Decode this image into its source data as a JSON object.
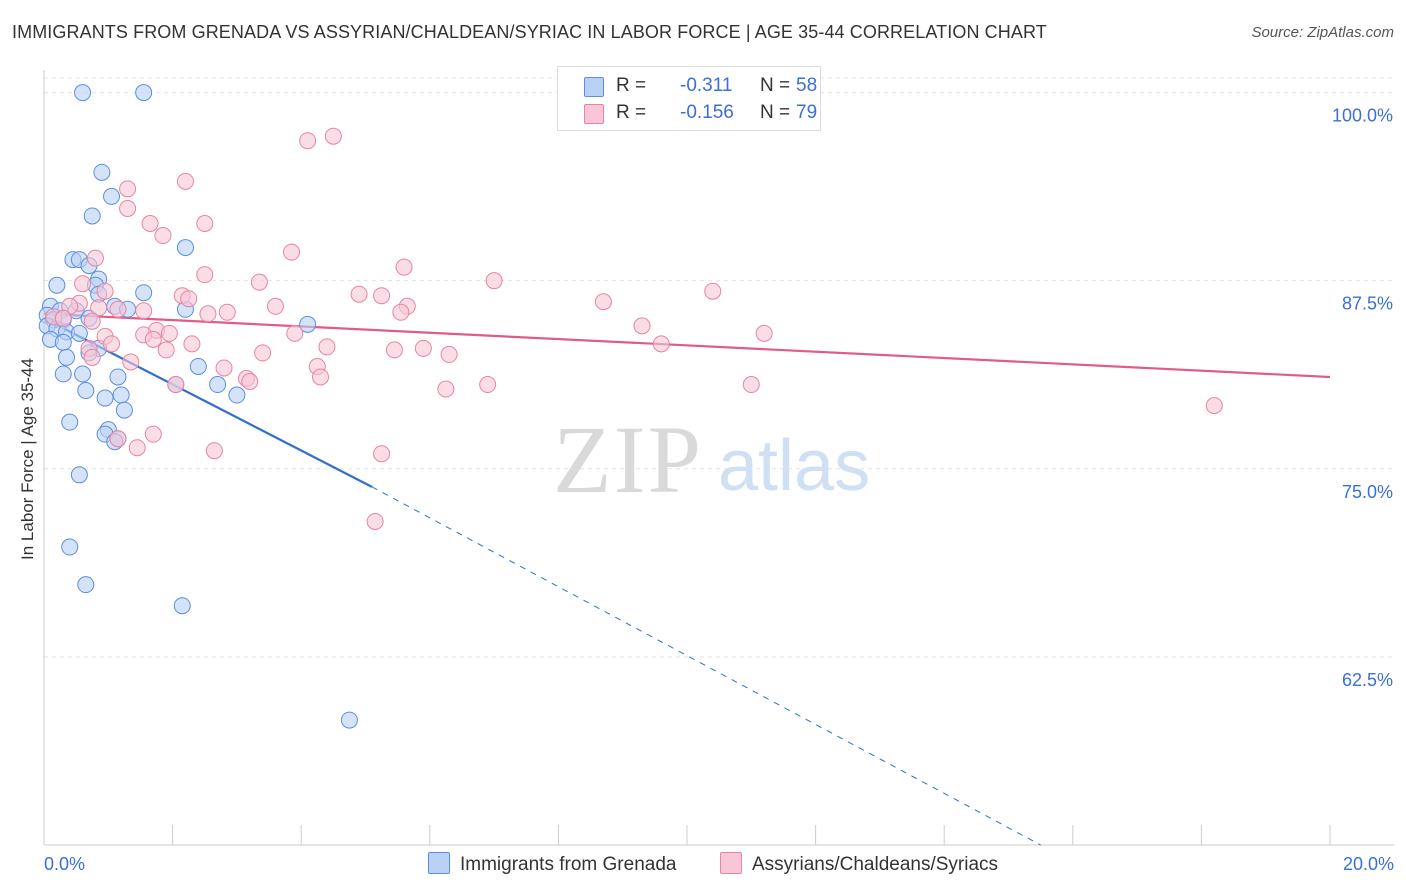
{
  "title": "IMMIGRANTS FROM GRENADA VS ASSYRIAN/CHALDEAN/SYRIAC IN LABOR FORCE | AGE 35-44 CORRELATION CHART",
  "source": "Source: ZipAtlas.com",
  "watermark": {
    "zip": "ZIP",
    "atlas": "atlas"
  },
  "legend": {
    "r_label": "R =",
    "n_label": "N =",
    "series1": {
      "r": "-0.311",
      "n": "58"
    },
    "series2": {
      "r": "-0.156",
      "n": "79"
    }
  },
  "colors": {
    "blue_fill": "#b9d1f5",
    "blue_stroke": "#5b8ee0",
    "blue_line": "#2f6fd1",
    "pink_fill": "#f8c6d6",
    "pink_stroke": "#e8849f",
    "pink_line": "#e05b8a",
    "tick_label": "#3a6fd8",
    "grid": "#e3e3e3"
  },
  "chart_data": {
    "type": "scatter",
    "title": "IMMIGRANTS FROM GRENADA VS ASSYRIAN/CHALDEAN/SYRIAC IN LABOR FORCE | AGE 35-44 CORRELATION CHART",
    "xlabel": "",
    "ylabel": "In Labor Force | Age 35-44",
    "xlim": [
      0,
      20
    ],
    "ylim": [
      50,
      101.5
    ],
    "x_tick_labels": [
      "0.0%",
      "20.0%"
    ],
    "y_ticks": [
      62.5,
      75.0,
      87.5,
      100.0
    ],
    "y_tick_labels": [
      "62.5%",
      "75.0%",
      "87.5%",
      "100.0%"
    ],
    "series": [
      {
        "name": "Immigrants from Grenada",
        "color": "blue",
        "trend": {
          "x0": 0.0,
          "y0": 85.0,
          "x1": 5.1,
          "y1": 73.8,
          "x_dash_end": 15.5,
          "y_dash_end": 50.0
        },
        "points": [
          [
            0.6,
            100
          ],
          [
            1.55,
            100
          ],
          [
            0.9,
            94.7
          ],
          [
            1.05,
            93.1
          ],
          [
            0.75,
            91.8
          ],
          [
            2.2,
            89.7
          ],
          [
            0.45,
            88.9
          ],
          [
            0.55,
            88.9
          ],
          [
            0.7,
            88.5
          ],
          [
            0.2,
            87.2
          ],
          [
            0.85,
            87.6
          ],
          [
            0.8,
            87.2
          ],
          [
            1.55,
            86.7
          ],
          [
            0.85,
            86.6
          ],
          [
            0.1,
            85.8
          ],
          [
            0.25,
            85.5
          ],
          [
            0.5,
            85.5
          ],
          [
            1.1,
            85.8
          ],
          [
            1.3,
            85.6
          ],
          [
            2.2,
            85.6
          ],
          [
            0.05,
            85.2
          ],
          [
            0.15,
            84.9
          ],
          [
            0.3,
            84.9
          ],
          [
            0.7,
            85.0
          ],
          [
            4.1,
            84.6
          ],
          [
            0.05,
            84.5
          ],
          [
            0.2,
            84.3
          ],
          [
            0.35,
            84.1
          ],
          [
            0.55,
            84.0
          ],
          [
            0.1,
            83.6
          ],
          [
            0.3,
            83.4
          ],
          [
            0.85,
            83.0
          ],
          [
            0.35,
            82.4
          ],
          [
            0.7,
            82.7
          ],
          [
            2.4,
            81.8
          ],
          [
            0.3,
            81.3
          ],
          [
            0.6,
            81.3
          ],
          [
            1.15,
            81.1
          ],
          [
            2.05,
            80.6
          ],
          [
            2.7,
            80.6
          ],
          [
            0.65,
            80.2
          ],
          [
            1.2,
            79.9
          ],
          [
            0.95,
            79.7
          ],
          [
            3.0,
            79.9
          ],
          [
            1.25,
            78.9
          ],
          [
            0.4,
            78.1
          ],
          [
            1.0,
            77.6
          ],
          [
            0.95,
            77.3
          ],
          [
            1.15,
            77.0
          ],
          [
            1.1,
            76.8
          ],
          [
            0.55,
            74.6
          ],
          [
            0.4,
            69.8
          ],
          [
            0.65,
            67.3
          ],
          [
            2.15,
            65.9
          ],
          [
            4.75,
            58.3
          ]
        ]
      },
      {
        "name": "Assyrians/Chaldeans/Syriacs",
        "color": "pink",
        "trend": {
          "x0": 0.0,
          "y0": 85.3,
          "x1": 20.0,
          "y1": 81.1
        },
        "points": [
          [
            4.1,
            96.8
          ],
          [
            4.5,
            97.1
          ],
          [
            2.2,
            94.1
          ],
          [
            1.3,
            93.6
          ],
          [
            1.3,
            92.3
          ],
          [
            1.65,
            91.3
          ],
          [
            2.5,
            91.3
          ],
          [
            1.85,
            90.5
          ],
          [
            3.85,
            89.4
          ],
          [
            0.8,
            89.0
          ],
          [
            5.6,
            88.4
          ],
          [
            2.5,
            87.9
          ],
          [
            3.35,
            87.4
          ],
          [
            7.0,
            87.5
          ],
          [
            0.6,
            87.3
          ],
          [
            0.95,
            86.8
          ],
          [
            4.9,
            86.6
          ],
          [
            5.25,
            86.5
          ],
          [
            10.4,
            86.8
          ],
          [
            2.15,
            86.5
          ],
          [
            2.25,
            86.3
          ],
          [
            8.7,
            86.1
          ],
          [
            0.55,
            86.0
          ],
          [
            0.4,
            85.8
          ],
          [
            0.85,
            85.7
          ],
          [
            3.6,
            85.8
          ],
          [
            5.65,
            85.8
          ],
          [
            1.15,
            85.6
          ],
          [
            1.55,
            85.5
          ],
          [
            2.55,
            85.3
          ],
          [
            2.85,
            85.4
          ],
          [
            5.55,
            85.4
          ],
          [
            0.15,
            85.1
          ],
          [
            0.3,
            85.0
          ],
          [
            0.75,
            84.8
          ],
          [
            1.75,
            84.2
          ],
          [
            1.95,
            84.0
          ],
          [
            1.55,
            83.9
          ],
          [
            3.9,
            84.0
          ],
          [
            9.3,
            84.5
          ],
          [
            11.2,
            84.0
          ],
          [
            0.95,
            83.8
          ],
          [
            1.7,
            83.6
          ],
          [
            1.05,
            83.3
          ],
          [
            2.3,
            83.3
          ],
          [
            0.7,
            83.0
          ],
          [
            1.9,
            82.9
          ],
          [
            4.4,
            83.1
          ],
          [
            3.4,
            82.7
          ],
          [
            5.45,
            82.9
          ],
          [
            5.9,
            83.0
          ],
          [
            6.3,
            82.6
          ],
          [
            9.6,
            83.3
          ],
          [
            0.75,
            82.4
          ],
          [
            1.35,
            82.1
          ],
          [
            4.25,
            81.8
          ],
          [
            2.8,
            81.7
          ],
          [
            3.15,
            81.0
          ],
          [
            4.3,
            81.1
          ],
          [
            3.2,
            80.8
          ],
          [
            2.05,
            80.6
          ],
          [
            6.9,
            80.6
          ],
          [
            11.0,
            80.6
          ],
          [
            6.25,
            80.3
          ],
          [
            18.2,
            79.2
          ],
          [
            1.7,
            77.3
          ],
          [
            1.15,
            77.0
          ],
          [
            1.45,
            76.4
          ],
          [
            2.65,
            76.2
          ],
          [
            5.25,
            76.0
          ],
          [
            5.15,
            71.5
          ]
        ]
      }
    ]
  },
  "bottom_legend": {
    "series1_label": "Immigrants from Grenada",
    "series2_label": "Assyrians/Chaldeans/Syriacs"
  }
}
